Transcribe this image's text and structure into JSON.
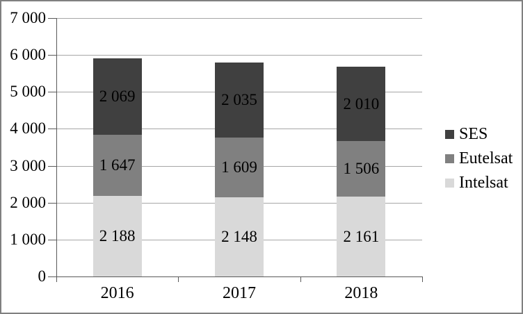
{
  "frame": {
    "border_color": "#808080",
    "background_color": "#ffffff"
  },
  "chart_data": {
    "type": "bar",
    "stacked": true,
    "title": "",
    "xlabel": "",
    "ylabel": "",
    "categories": [
      "2016",
      "2017",
      "2018"
    ],
    "series": [
      {
        "name": "Intelsat",
        "color": "#d9d9d9",
        "values": [
          2188,
          2148,
          2161
        ]
      },
      {
        "name": "Eutelsat",
        "color": "#808080",
        "values": [
          1647,
          1609,
          1506
        ]
      },
      {
        "name": "SES",
        "color": "#404040",
        "values": [
          2069,
          2035,
          2010
        ]
      }
    ],
    "totals": [
      5904,
      5792,
      5677
    ],
    "ylim": [
      0,
      7000
    ],
    "ytick_step": 1000,
    "ytick_labels": [
      "0",
      "1 000",
      "2 000",
      "3 000",
      "4 000",
      "5 000",
      "6 000",
      "7 000"
    ],
    "grid": true,
    "gridline_color": "#a6a6a6",
    "axis_color": "#595959",
    "data_labels": true,
    "data_label_color": "#000000",
    "legend": {
      "position": "right",
      "items": [
        {
          "label": "SES",
          "color": "#404040"
        },
        {
          "label": "Eutelsat",
          "color": "#808080"
        },
        {
          "label": "Intelsat",
          "color": "#d9d9d9"
        }
      ]
    }
  }
}
